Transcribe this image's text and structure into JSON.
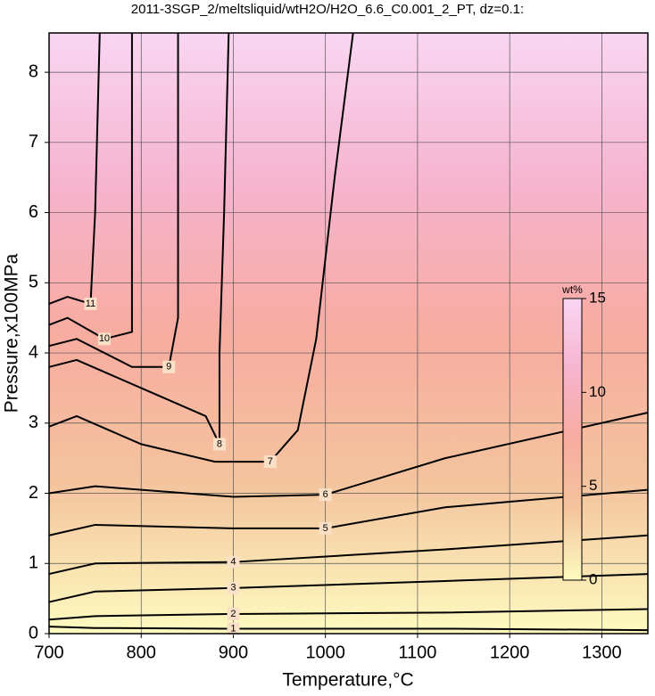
{
  "chart_data": {
    "type": "contour",
    "title": "2011-3SGP_2/meltsliquid/wtH2O/H2O_6.6_C0.001_2_PT, dz=0.1:",
    "x_label": "Temperature,°C",
    "y_label": "Pressure,x100MPa",
    "xlim": [
      700,
      1350
    ],
    "ylim": [
      0,
      8.56
    ],
    "xticks": [
      700,
      800,
      900,
      1000,
      1100,
      1200,
      1300
    ],
    "yticks": [
      0,
      1,
      2,
      3,
      4,
      5,
      6,
      7,
      8
    ],
    "grid": true,
    "line_color": "#000000",
    "colormap": [
      "#fdfbc0",
      "#f4c49e",
      "#f7aca0",
      "#f6b4cf",
      "#f9d6f2"
    ],
    "levels": [
      {
        "level": 1,
        "x": [
          700,
          750,
          900,
          1130,
          1350
        ],
        "y": [
          0.1,
          0.08,
          0.07,
          0.07,
          0.05
        ]
      },
      {
        "level": 2,
        "x": [
          700,
          750,
          900,
          1130,
          1350
        ],
        "y": [
          0.2,
          0.25,
          0.28,
          0.3,
          0.35
        ]
      },
      {
        "level": 3,
        "x": [
          700,
          750,
          900,
          1130,
          1350
        ],
        "y": [
          0.45,
          0.6,
          0.65,
          0.75,
          0.85
        ]
      },
      {
        "level": 4,
        "x": [
          700,
          750,
          900,
          1130,
          1350
        ],
        "y": [
          0.85,
          1.0,
          1.02,
          1.2,
          1.4
        ]
      },
      {
        "level": 5,
        "x": [
          700,
          750,
          900,
          1000,
          1130,
          1350
        ],
        "y": [
          1.4,
          1.55,
          1.5,
          1.5,
          1.8,
          2.05
        ]
      },
      {
        "level": 6,
        "x": [
          700,
          750,
          900,
          1000,
          1130,
          1350
        ],
        "y": [
          2.0,
          2.1,
          1.95,
          1.98,
          2.5,
          3.15
        ]
      },
      {
        "level": 7,
        "x": [
          700,
          730,
          800,
          880,
          940,
          970,
          990,
          1010,
          1030
        ],
        "y": [
          2.95,
          3.1,
          2.7,
          2.45,
          2.45,
          2.9,
          4.2,
          6.5,
          8.56
        ]
      },
      {
        "level": 8,
        "x": [
          700,
          730,
          800,
          870,
          885,
          885,
          890,
          895
        ],
        "y": [
          3.8,
          3.9,
          3.5,
          3.1,
          2.7,
          4.0,
          6.0,
          8.56
        ]
      },
      {
        "level": 9,
        "x": [
          700,
          730,
          790,
          830,
          840,
          840
        ],
        "y": [
          4.1,
          4.2,
          3.8,
          3.8,
          4.5,
          8.56
        ]
      },
      {
        "level": 10,
        "x": [
          700,
          720,
          760,
          790,
          790
        ],
        "y": [
          4.4,
          4.5,
          4.2,
          4.3,
          8.56
        ]
      },
      {
        "level": 11,
        "x": [
          700,
          720,
          745,
          750,
          755
        ],
        "y": [
          4.7,
          4.8,
          4.7,
          6.0,
          8.56
        ]
      }
    ],
    "colorbar": {
      "label": "wt%",
      "lim": [
        0,
        15
      ],
      "ticks": [
        0,
        5,
        10,
        15
      ]
    }
  }
}
